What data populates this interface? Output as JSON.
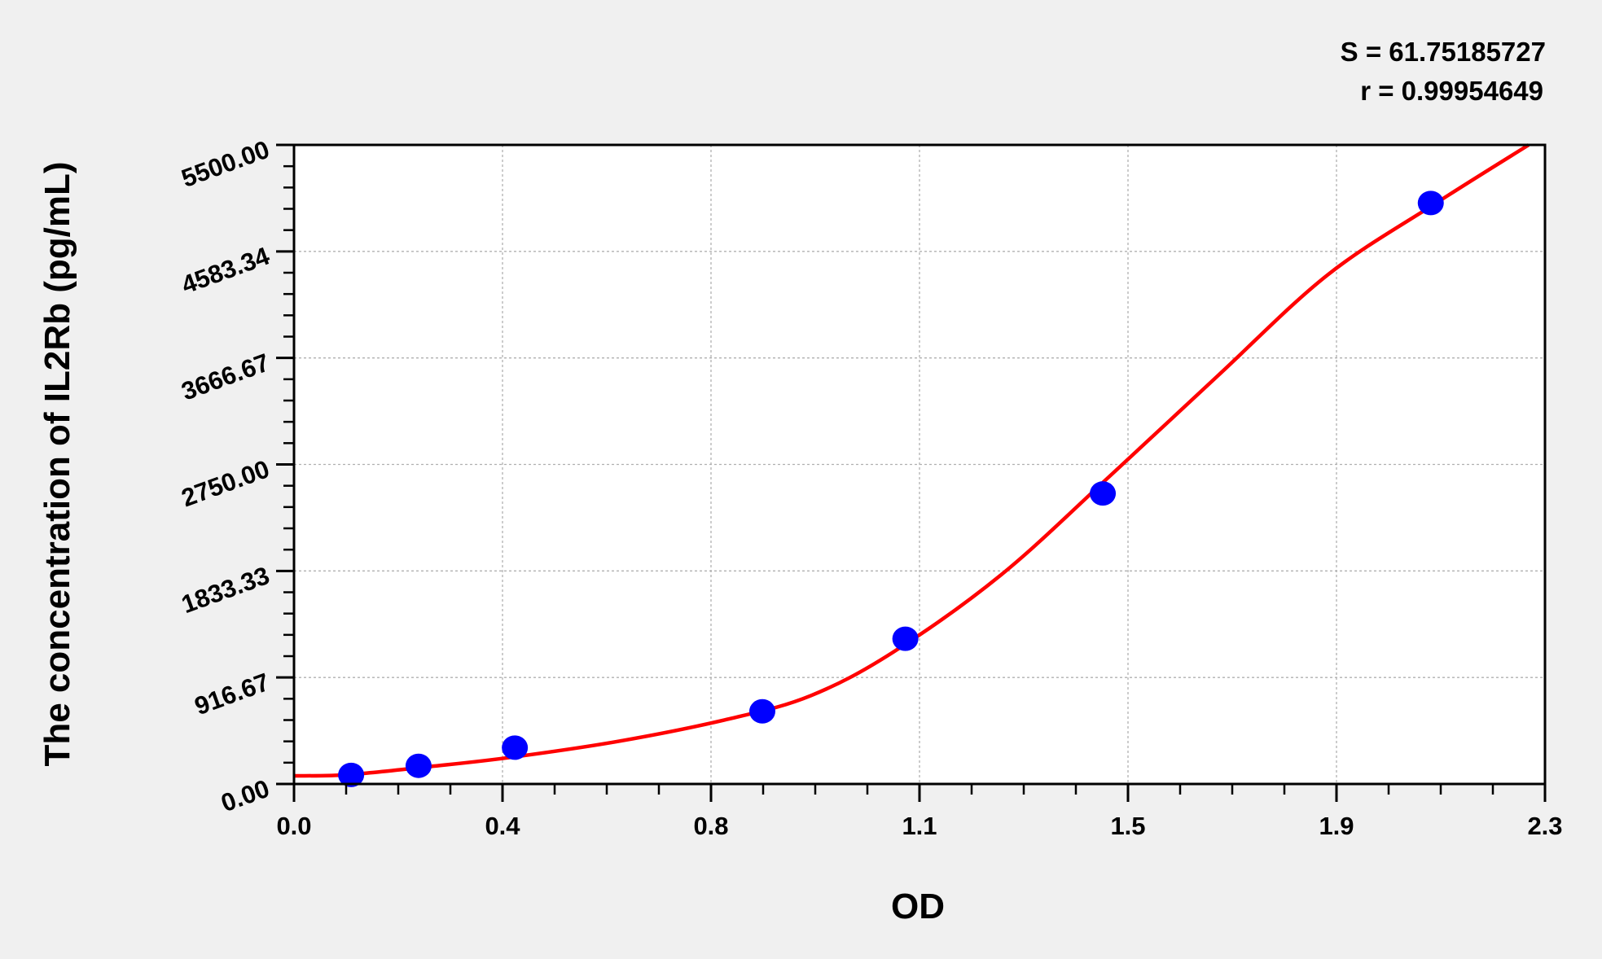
{
  "chart_data": {
    "type": "scatter",
    "xlabel": "OD",
    "ylabel": "The concentration of IL2Rb (pg/mL)",
    "xlim": [
      0,
      2.3
    ],
    "ylim": [
      0,
      5500
    ],
    "x_ticks": [
      "0.0",
      "0.4",
      "0.8",
      "1.1",
      "1.5",
      "1.9",
      "2.3"
    ],
    "y_ticks": [
      "0.00",
      "916.67",
      "1833.33",
      "2750.00",
      "3666.67",
      "4583.34",
      "5500.00"
    ],
    "grid": true,
    "annotations": [
      "S = 61.75185727",
      "r = 0.99954649"
    ],
    "series": [
      {
        "kind": "points",
        "color": "#0000ff",
        "x": [
          0.105,
          0.229,
          0.406,
          0.861,
          1.124,
          1.487,
          2.09
        ],
        "y": [
          78.125,
          156.25,
          312.5,
          625,
          1250,
          2500,
          5000
        ]
      },
      {
        "kind": "fitted-curve",
        "color": "#ff0000",
        "x": [
          0,
          0.1,
          0.25,
          0.4,
          0.6,
          0.8,
          0.95,
          1.1,
          1.3,
          1.5,
          1.7,
          1.9,
          2.1,
          2.27
        ],
        "y": [
          70,
          80,
          150,
          230,
          370,
          560,
          760,
          1130,
          1800,
          2650,
          3520,
          4380,
          5000,
          5500
        ]
      }
    ]
  }
}
